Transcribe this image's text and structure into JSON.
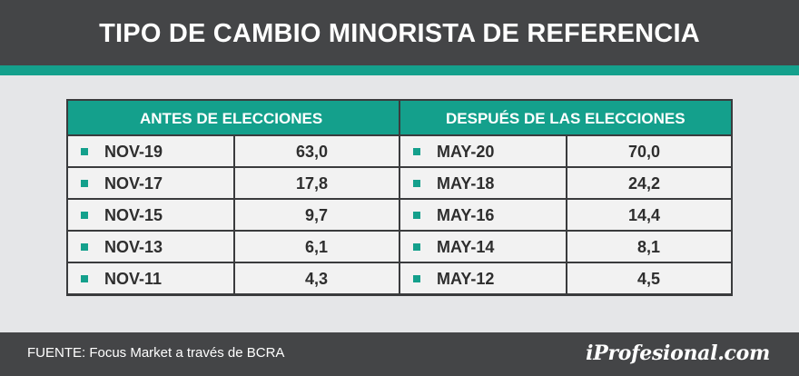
{
  "header": {
    "title": "TIPO DE CAMBIO MINORISTA DE REFERENCIA"
  },
  "colors": {
    "header_bg": "#444547",
    "accent": "#14a08c",
    "row_bg": "#f2f2f2",
    "page_bg": "#e5e6e8"
  },
  "chart_data": {
    "type": "table",
    "title": "TIPO DE CAMBIO MINORISTA DE REFERENCIA",
    "groups": [
      {
        "name": "ANTES DE ELECCIONES",
        "rows": [
          {
            "label": "NOV-19",
            "value": "63,0"
          },
          {
            "label": "NOV-17",
            "value": "17,8"
          },
          {
            "label": "NOV-15",
            "value": "9,7"
          },
          {
            "label": "NOV-13",
            "value": "6,1"
          },
          {
            "label": "NOV-11",
            "value": "4,3"
          }
        ]
      },
      {
        "name": "DESPUÉS DE LAS ELECCIONES",
        "rows": [
          {
            "label": "MAY-20",
            "value": "70,0"
          },
          {
            "label": "MAY-18",
            "value": "24,2"
          },
          {
            "label": "MAY-16",
            "value": "14,4"
          },
          {
            "label": "MAY-14",
            "value": "8,1"
          },
          {
            "label": "MAY-12",
            "value": "4,5"
          }
        ]
      }
    ]
  },
  "footer": {
    "source": "FUENTE: Focus Market a través de BCRA",
    "logo": "iProfesional.com"
  }
}
